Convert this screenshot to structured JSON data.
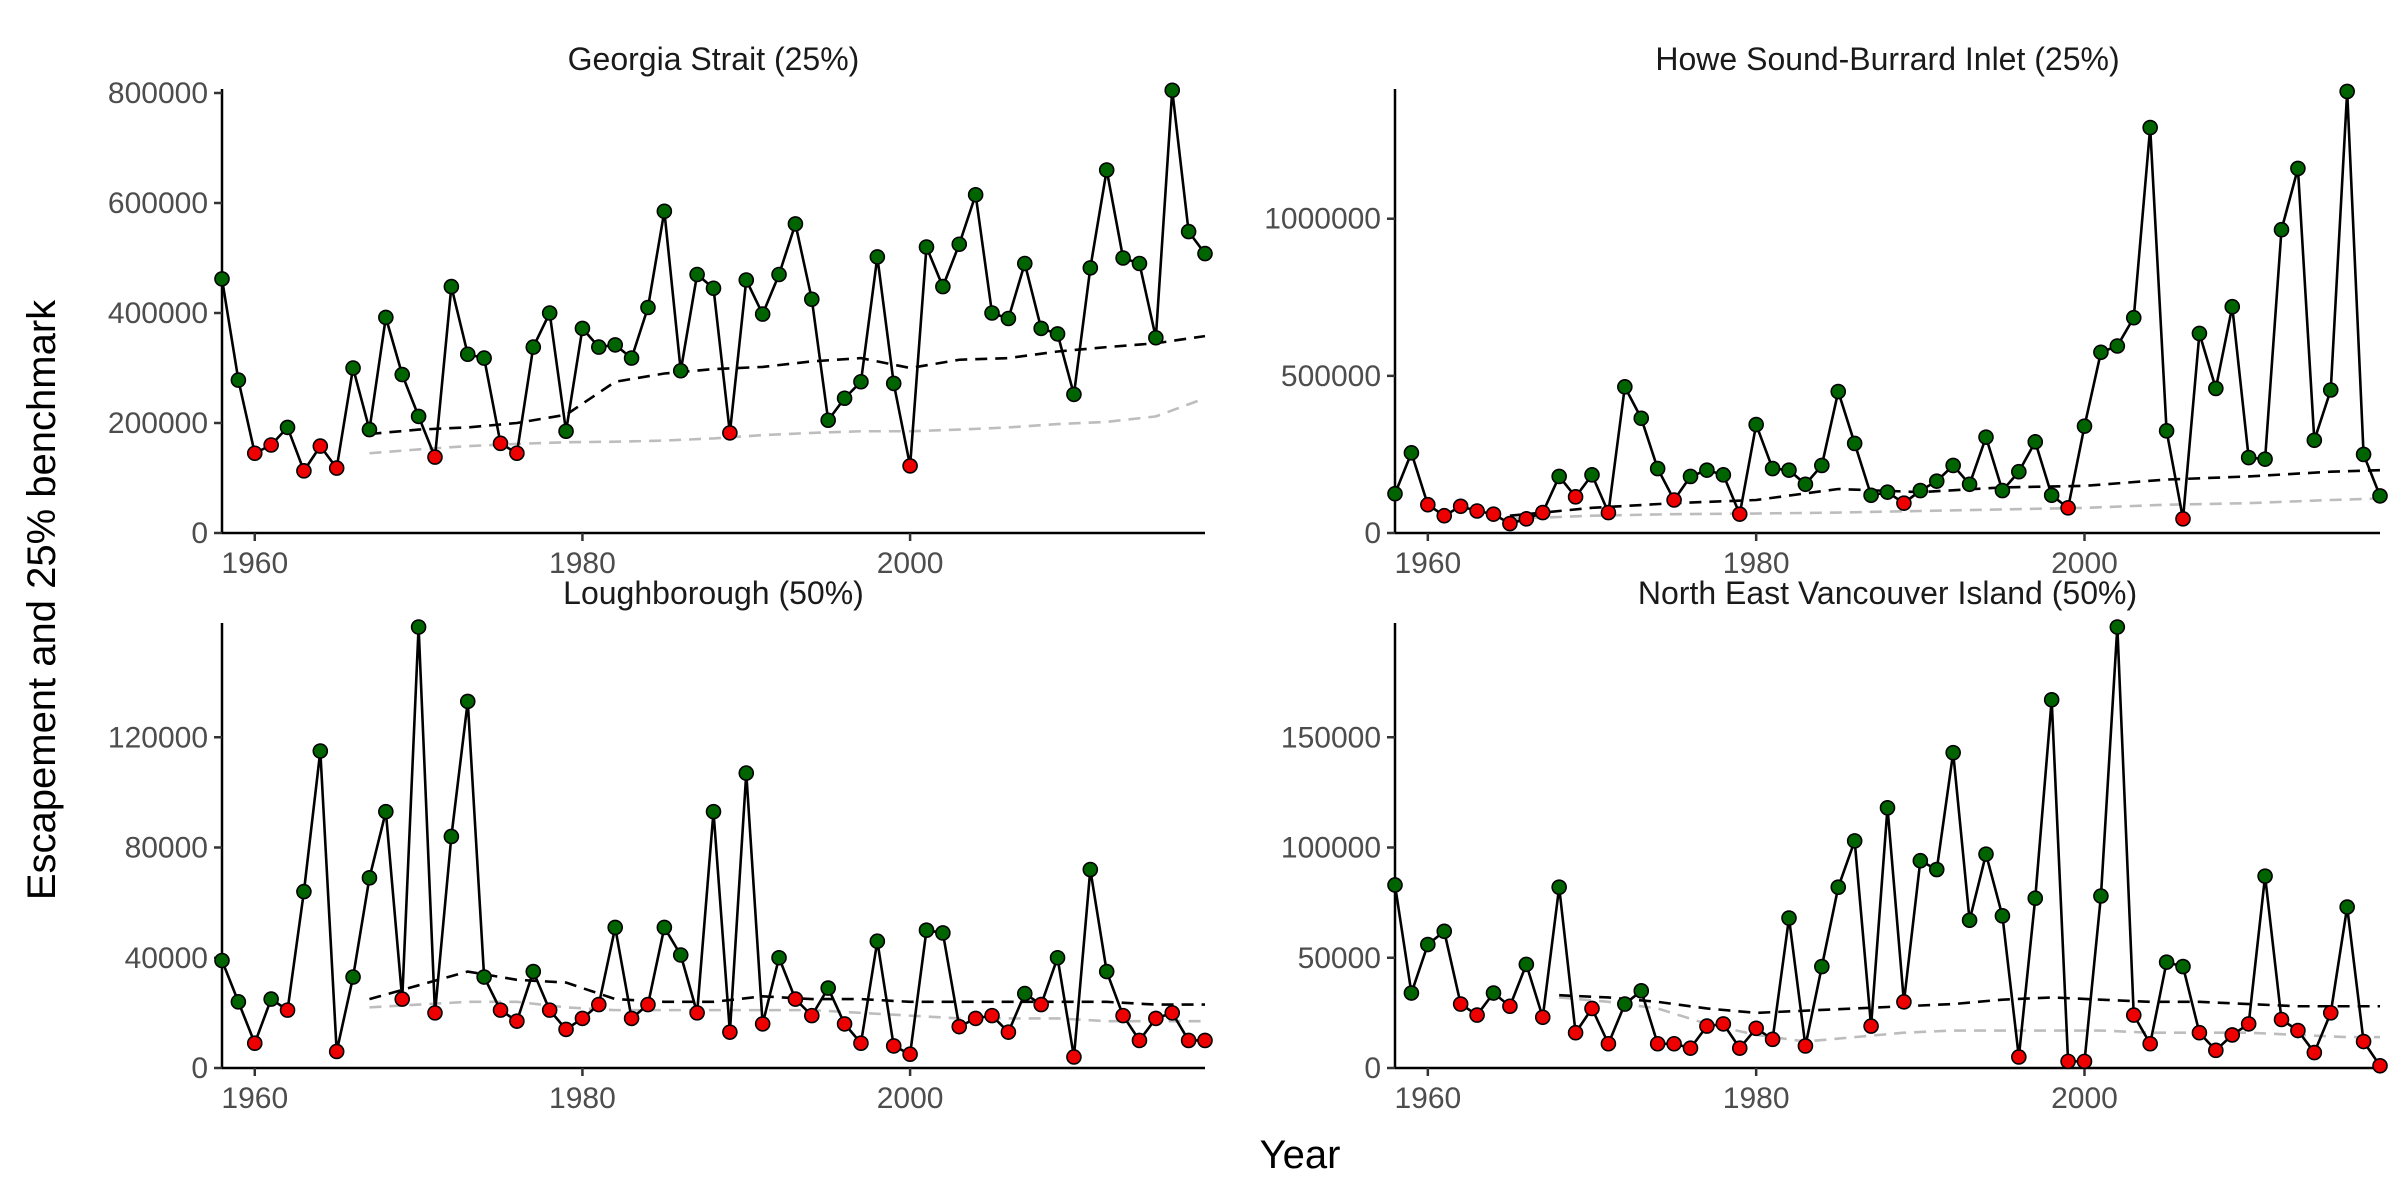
{
  "axes": {
    "xlabel": "Year",
    "ylabel": "Escapement and 25% benchmark"
  },
  "colors": {
    "above": "#006400",
    "below": "#ee0000",
    "line": "#000000",
    "benchmark_black": "#000000",
    "benchmark_gray": "#bdbdbd"
  },
  "chart_data": [
    {
      "type": "line",
      "title": "Georgia Strait (25%)",
      "xlim": [
        1958,
        2018
      ],
      "ylim": [
        0,
        800000
      ],
      "x_ticks": [
        1960,
        1980,
        2000
      ],
      "y_ticks": [
        0,
        200000,
        400000,
        600000,
        800000
      ],
      "years": [
        1958,
        1959,
        1960,
        1961,
        1962,
        1963,
        1964,
        1965,
        1966,
        1967,
        1968,
        1969,
        1970,
        1971,
        1972,
        1973,
        1974,
        1975,
        1976,
        1977,
        1978,
        1979,
        1980,
        1981,
        1982,
        1983,
        1984,
        1985,
        1986,
        1987,
        1988,
        1989,
        1990,
        1991,
        1992,
        1993,
        1994,
        1995,
        1996,
        1997,
        1998,
        1999,
        2000,
        2001,
        2002,
        2003,
        2004,
        2005,
        2006,
        2007,
        2008,
        2009,
        2010,
        2011,
        2012,
        2013,
        2014,
        2015,
        2016,
        2017,
        2018
      ],
      "escapement": [
        462000,
        278000,
        145000,
        160000,
        192000,
        113000,
        158000,
        118000,
        300000,
        188000,
        392000,
        288000,
        212000,
        138000,
        448000,
        325000,
        318000,
        163000,
        145000,
        338000,
        400000,
        185000,
        372000,
        338000,
        342000,
        318000,
        410000,
        585000,
        295000,
        470000,
        445000,
        182000,
        460000,
        398000,
        470000,
        562000,
        425000,
        205000,
        245000,
        275000,
        502000,
        272000,
        122000,
        520000,
        448000,
        525000,
        615000,
        400000,
        390000,
        490000,
        372000,
        362000,
        252000,
        482000,
        660000,
        500000,
        490000,
        355000,
        805000,
        548000,
        508000
      ],
      "status": [
        "above",
        "above",
        "below",
        "below",
        "above",
        "below",
        "below",
        "below",
        "above",
        "above",
        "above",
        "above",
        "above",
        "below",
        "above",
        "above",
        "above",
        "below",
        "below",
        "above",
        "above",
        "above",
        "above",
        "above",
        "above",
        "above",
        "above",
        "above",
        "above",
        "above",
        "above",
        "below",
        "above",
        "above",
        "above",
        "above",
        "above",
        "above",
        "above",
        "above",
        "above",
        "above",
        "below",
        "above",
        "above",
        "above",
        "above",
        "above",
        "above",
        "above",
        "above",
        "above",
        "above",
        "above",
        "above",
        "above",
        "above",
        "above",
        "above",
        "above",
        "above"
      ],
      "benchmark_years": [
        1967,
        1970,
        1973,
        1976,
        1979,
        1982,
        1985,
        1988,
        1991,
        1994,
        1997,
        2000,
        2003,
        2006,
        2009,
        2012,
        2015,
        2018
      ],
      "benchmark_black": [
        180000,
        188000,
        192000,
        200000,
        215000,
        275000,
        290000,
        298000,
        302000,
        312000,
        318000,
        300000,
        315000,
        318000,
        330000,
        338000,
        345000,
        358000
      ],
      "benchmark_gray": [
        145000,
        152000,
        158000,
        162000,
        165000,
        166000,
        168000,
        172000,
        178000,
        182000,
        185000,
        185000,
        188000,
        192000,
        198000,
        202000,
        212000,
        245000
      ]
    },
    {
      "type": "line",
      "title": "Howe Sound-Burrard Inlet (25%)",
      "xlim": [
        1958,
        2018
      ],
      "ylim": [
        0,
        1400000
      ],
      "x_ticks": [
        1960,
        1980,
        2000
      ],
      "y_ticks": [
        0,
        500000,
        1000000
      ],
      "years": [
        1958,
        1959,
        1960,
        1961,
        1962,
        1963,
        1964,
        1965,
        1966,
        1967,
        1968,
        1969,
        1970,
        1971,
        1972,
        1973,
        1974,
        1975,
        1976,
        1977,
        1978,
        1979,
        1980,
        1981,
        1982,
        1983,
        1984,
        1985,
        1986,
        1987,
        1988,
        1989,
        1990,
        1991,
        1992,
        1993,
        1994,
        1995,
        1996,
        1997,
        1998,
        1999,
        2000,
        2001,
        2002,
        2003,
        2004,
        2005,
        2006,
        2007,
        2008,
        2009,
        2010,
        2011,
        2012,
        2013,
        2014,
        2015,
        2016,
        2017,
        2018
      ],
      "escapement": [
        125000,
        255000,
        90000,
        55000,
        85000,
        70000,
        60000,
        30000,
        45000,
        65000,
        180000,
        115000,
        185000,
        65000,
        465000,
        365000,
        205000,
        105000,
        180000,
        200000,
        185000,
        60000,
        345000,
        205000,
        200000,
        155000,
        215000,
        450000,
        285000,
        120000,
        130000,
        95000,
        135000,
        165000,
        215000,
        155000,
        305000,
        135000,
        195000,
        290000,
        120000,
        80000,
        340000,
        575000,
        595000,
        685000,
        1290000,
        325000,
        45000,
        635000,
        460000,
        720000,
        240000,
        235000,
        965000,
        1160000,
        295000,
        455000,
        1405000,
        250000,
        118000
      ],
      "status": [
        "above",
        "above",
        "below",
        "below",
        "below",
        "below",
        "below",
        "below",
        "below",
        "below",
        "above",
        "below",
        "above",
        "below",
        "above",
        "above",
        "above",
        "below",
        "above",
        "above",
        "above",
        "below",
        "above",
        "above",
        "above",
        "above",
        "above",
        "above",
        "above",
        "above",
        "above",
        "below",
        "above",
        "above",
        "above",
        "above",
        "above",
        "above",
        "above",
        "above",
        "above",
        "below",
        "above",
        "above",
        "above",
        "above",
        "above",
        "above",
        "below",
        "above",
        "above",
        "above",
        "above",
        "above",
        "above",
        "above",
        "above",
        "above",
        "above",
        "above",
        "above"
      ],
      "benchmark_years": [
        1965,
        1970,
        1975,
        1980,
        1985,
        1990,
        1995,
        2000,
        2005,
        2010,
        2015,
        2018
      ],
      "benchmark_black": [
        55000,
        80000,
        95000,
        105000,
        140000,
        130000,
        145000,
        150000,
        170000,
        180000,
        195000,
        200000
      ],
      "benchmark_gray": [
        45000,
        55000,
        60000,
        62000,
        65000,
        70000,
        75000,
        80000,
        90000,
        95000,
        105000,
        110000
      ]
    },
    {
      "type": "line",
      "title": "Loughborough (50%)",
      "xlim": [
        1958,
        2018
      ],
      "ylim": [
        0,
        160000
      ],
      "x_ticks": [
        1960,
        1980,
        2000
      ],
      "y_ticks": [
        0,
        40000,
        80000,
        120000
      ],
      "years": [
        1958,
        1959,
        1960,
        1961,
        1962,
        1963,
        1964,
        1965,
        1966,
        1967,
        1968,
        1969,
        1970,
        1971,
        1972,
        1973,
        1974,
        1975,
        1976,
        1977,
        1978,
        1979,
        1980,
        1981,
        1982,
        1983,
        1984,
        1985,
        1986,
        1987,
        1988,
        1989,
        1990,
        1991,
        1992,
        1993,
        1994,
        1995,
        1996,
        1997,
        1998,
        1999,
        2000,
        2001,
        2002,
        2003,
        2004,
        2005,
        2006,
        2007,
        2008,
        2009,
        2010,
        2011,
        2012,
        2013,
        2014,
        2015,
        2016,
        2017,
        2018
      ],
      "escapement": [
        39000,
        24000,
        9000,
        25000,
        21000,
        64000,
        115000,
        6000,
        33000,
        69000,
        93000,
        25000,
        160000,
        20000,
        84000,
        133000,
        33000,
        21000,
        17000,
        35000,
        21000,
        14000,
        18000,
        23000,
        51000,
        18000,
        23000,
        51000,
        41000,
        20000,
        93000,
        13000,
        107000,
        16000,
        40000,
        25000,
        19000,
        29000,
        16000,
        9000,
        46000,
        8000,
        5000,
        50000,
        49000,
        15000,
        18000,
        19000,
        13000,
        27000,
        23000,
        40000,
        4000,
        72000,
        35000,
        19000,
        10000,
        18000,
        20000,
        10000,
        10000
      ],
      "status": [
        "above",
        "above",
        "below",
        "above",
        "below",
        "above",
        "above",
        "below",
        "above",
        "above",
        "above",
        "below",
        "above",
        "below",
        "above",
        "above",
        "above",
        "below",
        "below",
        "above",
        "below",
        "below",
        "below",
        "below",
        "above",
        "below",
        "below",
        "above",
        "above",
        "below",
        "above",
        "below",
        "above",
        "below",
        "above",
        "below",
        "below",
        "above",
        "below",
        "below",
        "above",
        "below",
        "below",
        "above",
        "above",
        "below",
        "below",
        "below",
        "below",
        "above",
        "below",
        "above",
        "below",
        "above",
        "above",
        "below",
        "below",
        "below",
        "below",
        "below",
        "below"
      ],
      "benchmark_years": [
        1967,
        1970,
        1973,
        1976,
        1979,
        1982,
        1985,
        1988,
        1991,
        1994,
        1997,
        2000,
        2003,
        2006,
        2009,
        2012,
        2015,
        2018
      ],
      "benchmark_black": [
        25000,
        30000,
        35000,
        32000,
        31000,
        25000,
        24000,
        24000,
        26000,
        25000,
        25000,
        24000,
        24000,
        24000,
        24000,
        24000,
        23000,
        23000
      ],
      "benchmark_gray": [
        22000,
        23000,
        24000,
        24000,
        22000,
        21000,
        21000,
        21000,
        21000,
        21000,
        20000,
        19000,
        18000,
        18000,
        18000,
        17000,
        17000,
        17000
      ]
    },
    {
      "type": "line",
      "title": "North East Vancouver Island (50%)",
      "xlim": [
        1958,
        2018
      ],
      "ylim": [
        0,
        200000
      ],
      "x_ticks": [
        1960,
        1980,
        2000
      ],
      "y_ticks": [
        0,
        50000,
        100000,
        150000
      ],
      "years": [
        1958,
        1959,
        1960,
        1961,
        1962,
        1963,
        1964,
        1965,
        1966,
        1967,
        1968,
        1969,
        1970,
        1971,
        1972,
        1973,
        1974,
        1975,
        1976,
        1977,
        1978,
        1979,
        1980,
        1981,
        1982,
        1983,
        1984,
        1985,
        1986,
        1987,
        1988,
        1989,
        1990,
        1991,
        1992,
        1993,
        1994,
        1995,
        1996,
        1997,
        1998,
        1999,
        2000,
        2001,
        2002,
        2003,
        2004,
        2005,
        2006,
        2007,
        2008,
        2009,
        2010,
        2011,
        2012,
        2013,
        2014,
        2015,
        2016,
        2017,
        2018
      ],
      "escapement": [
        83000,
        34000,
        56000,
        62000,
        29000,
        24000,
        34000,
        28000,
        47000,
        23000,
        82000,
        16000,
        27000,
        11000,
        29000,
        35000,
        11000,
        11000,
        9000,
        19000,
        20000,
        9000,
        18000,
        13000,
        68000,
        10000,
        46000,
        82000,
        103000,
        19000,
        118000,
        30000,
        94000,
        90000,
        143000,
        67000,
        97000,
        69000,
        5000,
        77000,
        167000,
        3000,
        3000,
        78000,
        200000,
        24000,
        11000,
        48000,
        46000,
        16000,
        8000,
        15000,
        20000,
        87000,
        22000,
        17000,
        7000,
        25000,
        73000,
        12000,
        1000
      ],
      "status": [
        "above",
        "above",
        "above",
        "above",
        "below",
        "below",
        "above",
        "below",
        "above",
        "below",
        "above",
        "below",
        "below",
        "below",
        "above",
        "above",
        "below",
        "below",
        "below",
        "below",
        "below",
        "below",
        "below",
        "below",
        "above",
        "below",
        "above",
        "above",
        "above",
        "below",
        "above",
        "below",
        "above",
        "above",
        "above",
        "above",
        "above",
        "above",
        "below",
        "above",
        "above",
        "below",
        "below",
        "above",
        "above",
        "below",
        "below",
        "above",
        "above",
        "below",
        "below",
        "below",
        "below",
        "above",
        "below",
        "below",
        "below",
        "below",
        "above",
        "below",
        "below"
      ],
      "benchmark_years": [
        1968,
        1971,
        1974,
        1977,
        1980,
        1983,
        1986,
        1989,
        1992,
        1995,
        1998,
        2001,
        2004,
        2007,
        2010,
        2013,
        2016,
        2018
      ],
      "benchmark_black": [
        33000,
        32000,
        30000,
        27000,
        25000,
        26000,
        27000,
        28000,
        29000,
        31000,
        32000,
        31000,
        30000,
        30000,
        29000,
        28000,
        28000,
        28000
      ],
      "benchmark_gray": [
        32000,
        30000,
        27000,
        20000,
        15000,
        12000,
        14000,
        16000,
        17000,
        17000,
        17000,
        17000,
        16000,
        16000,
        16000,
        15000,
        14000,
        14000
      ]
    }
  ]
}
